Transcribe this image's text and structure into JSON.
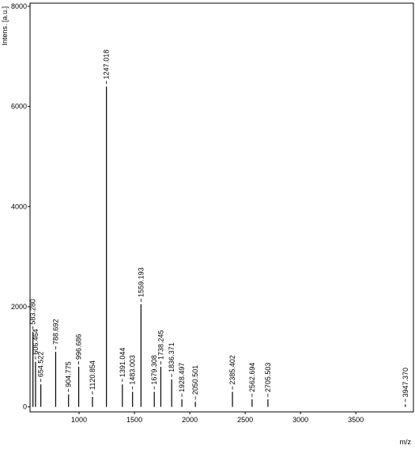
{
  "chart_data": {
    "type": "spectrum",
    "y_label": "Intens. [a.u.]",
    "x_label": "m/z",
    "xlim": [
      557,
      4020
    ],
    "ylim": [
      -100,
      8000
    ],
    "xticks": [
      1000,
      1500,
      2000,
      2500,
      3000,
      3500
    ],
    "yticks": [
      0,
      2000,
      4000,
      6000,
      8000
    ],
    "color": "#000000",
    "x": [
      583.28,
      606.464,
      654.522,
      788.692,
      904.775,
      996.686,
      1120.854,
      1247.018,
      1391.044,
      1483.003,
      1559.193,
      1679.308,
      1738.245,
      1836.371,
      1928.497,
      2050.501,
      2385.402,
      2562.694,
      2705.503,
      3947.37
    ],
    "x_labels": [
      "583.280",
      "606.464",
      "654.522",
      "788.692",
      "904.775",
      "996.686",
      "1120.854",
      "1247.018",
      "1391.044",
      "1483.003",
      "1559.193",
      "1679.308",
      "1738.245",
      "1836.371",
      "1928.497",
      "2050.501",
      "2385.402",
      "2562.694",
      "2705.503",
      "3947.370"
    ],
    "values": [
      1500,
      900,
      450,
      1100,
      250,
      800,
      200,
      6400,
      450,
      300,
      2050,
      300,
      800,
      550,
      150,
      100,
      300,
      150,
      150,
      50
    ]
  }
}
